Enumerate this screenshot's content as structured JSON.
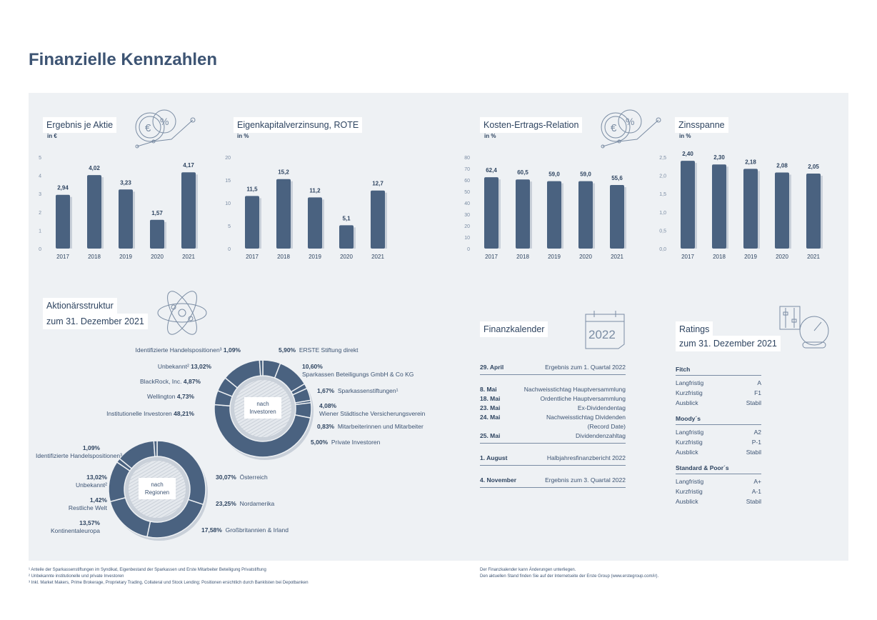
{
  "title": "Finanzielle Kennzahlen",
  "colors": {
    "bar": "#4a6280",
    "accent": "#3d5473",
    "panel": "#eef1f4"
  },
  "chart_data": [
    {
      "type": "bar",
      "title": "Ergebnis je Aktie",
      "unit": "in €",
      "categories": [
        "2017",
        "2018",
        "2019",
        "2020",
        "2021"
      ],
      "values": [
        2.94,
        4.02,
        3.23,
        1.57,
        4.17
      ],
      "labels": [
        "2,94",
        "4,02",
        "3,23",
        "1,57",
        "4,17"
      ],
      "ylim": [
        0,
        5
      ],
      "yticks": [
        "0",
        "1",
        "2",
        "3",
        "4",
        "5"
      ],
      "ystep": 1
    },
    {
      "type": "bar",
      "title": "Eigenkapitalverzinsung, ROTE",
      "unit": "in %",
      "categories": [
        "2017",
        "2018",
        "2019",
        "2020",
        "2021"
      ],
      "values": [
        11.5,
        15.2,
        11.2,
        5.1,
        12.7
      ],
      "labels": [
        "11,5",
        "15,2",
        "11,2",
        "5,1",
        "12,7"
      ],
      "ylim": [
        0,
        20
      ],
      "yticks": [
        "0",
        "5",
        "10",
        "15",
        "20"
      ],
      "ystep": 5
    },
    {
      "type": "bar",
      "title": "Kosten-Ertrags-Relation",
      "unit": "in %",
      "categories": [
        "2017",
        "2018",
        "2019",
        "2020",
        "2021"
      ],
      "values": [
        62.4,
        60.5,
        59.0,
        59.0,
        55.6
      ],
      "labels": [
        "62,4",
        "60,5",
        "59,0",
        "59,0",
        "55,6"
      ],
      "ylim": [
        0,
        80
      ],
      "yticks": [
        "0",
        "10",
        "20",
        "30",
        "40",
        "50",
        "60",
        "70",
        "80"
      ],
      "ystep": 10
    },
    {
      "type": "bar",
      "title": "Zinsspanne",
      "unit": "in %",
      "categories": [
        "2017",
        "2018",
        "2019",
        "2020",
        "2021"
      ],
      "values": [
        2.4,
        2.3,
        2.18,
        2.08,
        2.05
      ],
      "labels": [
        "2,40",
        "2,30",
        "2,18",
        "2,08",
        "2,05"
      ],
      "ylim": [
        0,
        2.5
      ],
      "yticks": [
        "0,0",
        "0,5",
        "1,0",
        "1,5",
        "2,0",
        "2,5"
      ],
      "ystep": 0.5
    },
    {
      "type": "pie",
      "title": "Aktionärsstruktur zum 31. Dezember 2021",
      "center_label": "nach Investoren",
      "slices": [
        {
          "name": "ERSTE Stiftung direkt",
          "value": 5.9,
          "label": "5,90%"
        },
        {
          "name": "Sparkassen Beteiligungs GmbH & Co KG",
          "value": 10.6,
          "label": "10,60%"
        },
        {
          "name": "Sparkassenstiftungen¹",
          "value": 1.67,
          "label": "1,67%"
        },
        {
          "name": "Wiener Städtische Versicherungsverein",
          "value": 4.08,
          "label": "4,08%"
        },
        {
          "name": "Mitarbeiterinnen und Mitarbeiter",
          "value": 0.83,
          "label": "0,83%"
        },
        {
          "name": "Private Investoren",
          "value": 5.0,
          "label": "5,00%"
        },
        {
          "name": "Institutionelle Investoren",
          "value": 48.21,
          "label": "48,21%"
        },
        {
          "name": "Wellington",
          "value": 4.73,
          "label": "4,73%"
        },
        {
          "name": "BlackRock, Inc.",
          "value": 4.87,
          "label": "4,87%"
        },
        {
          "name": "Unbekannt²",
          "value": 13.02,
          "label": "13,02%"
        },
        {
          "name": "Identifizierte Handelspositionen³",
          "value": 1.09,
          "label": "1,09%"
        }
      ]
    },
    {
      "type": "pie",
      "center_label": "nach Regionen",
      "slices": [
        {
          "name": "Österreich",
          "value": 30.07,
          "label": "30,07%"
        },
        {
          "name": "Nordamerika",
          "value": 23.25,
          "label": "23,25%"
        },
        {
          "name": "Großbritannien & Irland",
          "value": 17.58,
          "label": "17,58%"
        },
        {
          "name": "Kontinentaleuropa",
          "value": 13.57,
          "label": "13,57%"
        },
        {
          "name": "Restliche Welt",
          "value": 1.42,
          "label": "1,42%"
        },
        {
          "name": "Unbekannt²",
          "value": 13.02,
          "label": "13,02%"
        },
        {
          "name": "Identifizierte Handelspositionen³",
          "value": 1.09,
          "label": "1,09%"
        }
      ]
    }
  ],
  "aktionaer": {
    "line1": "Aktionärsstruktur",
    "line2": "zum 31. Dezember 2021"
  },
  "kalender": {
    "title": "Finanzkalender",
    "icon_year": "2022",
    "groups": [
      [
        {
          "date": "29. April",
          "event": "Ergebnis zum 1. Quartal 2022"
        }
      ],
      [
        {
          "date": "8. Mai",
          "event": "Nachweisstichtag Hauptversammlung"
        },
        {
          "date": "18. Mai",
          "event": "Ordentliche Hauptversammlung"
        },
        {
          "date": "23. Mai",
          "event": "Ex-Dividendentag"
        },
        {
          "date": "24. Mai",
          "event": "Nachweisstichtag Dividenden",
          "event2": "(Record Date)"
        },
        {
          "date": "25. Mai",
          "event": "Dividendenzahltag"
        }
      ],
      [
        {
          "date": "1. August",
          "event": "Halbjahresfinanzbericht 2022"
        }
      ],
      [
        {
          "date": "4. November",
          "event": "Ergebnis zum 3. Quartal 2022"
        }
      ]
    ]
  },
  "ratings": {
    "line1": "Ratings",
    "line2": "zum 31. Dezember 2021",
    "agencies": [
      {
        "name": "Fitch",
        "rows": [
          [
            "Langfristig",
            "A"
          ],
          [
            "Kurzfristig",
            "F1"
          ],
          [
            "Ausblick",
            "Stabil"
          ]
        ]
      },
      {
        "name": "Moody´s",
        "rows": [
          [
            "Langfristig",
            "A2"
          ],
          [
            "Kurzfristig",
            "P-1"
          ],
          [
            "Ausblick",
            "Stabil"
          ]
        ]
      },
      {
        "name": "Standard & Poor´s",
        "rows": [
          [
            "Langfristig",
            "A+"
          ],
          [
            "Kurzfristig",
            "A-1"
          ],
          [
            "Ausblick",
            "Stabil"
          ]
        ]
      }
    ]
  },
  "footnotes": [
    "¹ Anteile der Sparkassenstiftungen im Syndikat, Eigenbestand der Sparkassen und Erste Mitarbeiter Beteiligung Privatstiftung",
    "² Unbekannte institutionelle und private Investoren",
    "³ Inkl. Market Makers, Prime Brokerage, Proprietary Trading, Collateral und Stock Lending; Positionen ersichtlich durch Banklisten bei Depotbanken"
  ],
  "kalender_note": [
    "Der Finanzkalender kann Änderungen unterliegen.",
    "Den aktuellen Stand finden Sie auf der Internetseite der Erste Group (www.erstegroup.com/ir)."
  ]
}
